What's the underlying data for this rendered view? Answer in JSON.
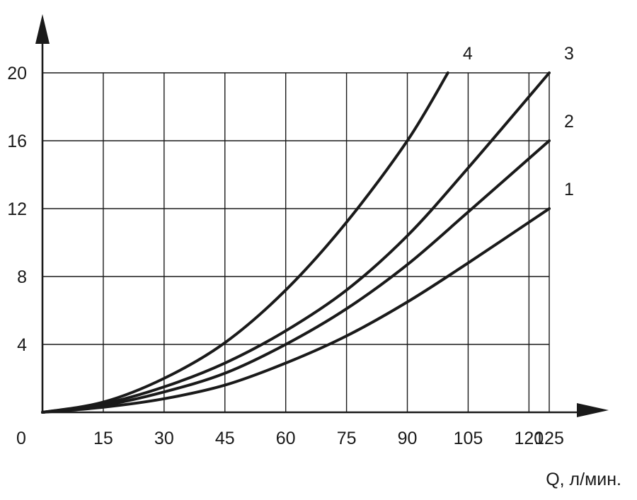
{
  "chart_data": {
    "type": "line",
    "xlabel": "Q, л/мин.",
    "ylabel": "",
    "origin_label": "0",
    "xlim": [
      0,
      125
    ],
    "ylim": [
      0,
      20
    ],
    "x_ticks": [
      15,
      30,
      45,
      60,
      75,
      90,
      105,
      120,
      125
    ],
    "y_ticks": [
      4,
      8,
      12,
      16,
      20
    ],
    "grid": true,
    "series": [
      {
        "name": "1",
        "x": [
          0,
          15,
          30,
          45,
          60,
          75,
          90,
          105,
          125
        ],
        "values": [
          0,
          0.3,
          0.8,
          1.6,
          2.9,
          4.5,
          6.5,
          8.8,
          12
        ]
      },
      {
        "name": "2",
        "x": [
          0,
          15,
          30,
          45,
          60,
          75,
          90,
          105,
          125
        ],
        "values": [
          0,
          0.4,
          1.2,
          2.3,
          4.0,
          6.1,
          8.7,
          11.8,
          16
        ]
      },
      {
        "name": "3",
        "x": [
          0,
          15,
          30,
          45,
          60,
          75,
          90,
          105,
          125
        ],
        "values": [
          0,
          0.5,
          1.5,
          2.9,
          4.8,
          7.2,
          10.4,
          14.4,
          20
        ]
      },
      {
        "name": "4",
        "x": [
          0,
          15,
          30,
          45,
          60,
          75,
          90,
          100
        ],
        "values": [
          0,
          0.6,
          2.0,
          4.1,
          7.2,
          11.2,
          16.0,
          20
        ]
      }
    ]
  }
}
